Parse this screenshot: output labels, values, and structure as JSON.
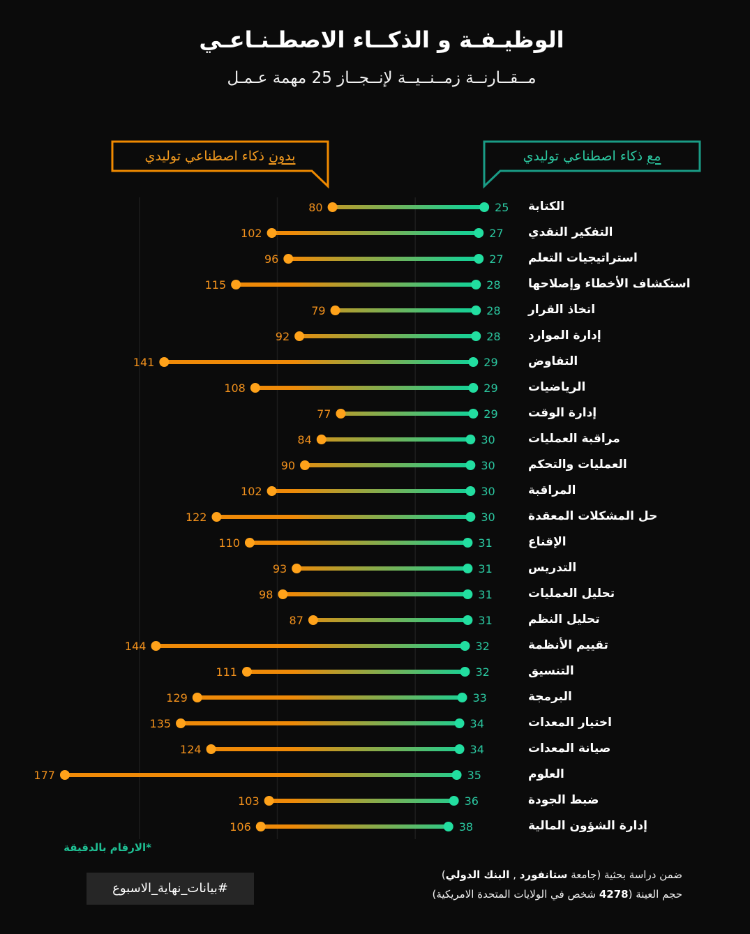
{
  "chart_data": {
    "type": "bar",
    "orientation": "horizontal",
    "variant": "dumbbell",
    "title": "الوظيـفـة و الذكــاء الاصطـنـاعـي",
    "subtitle": "مــقــارنــة زمــنــيــة لإنــجــاز 25 مهمة عـمـل",
    "categories": [
      "الكتابة",
      "التفكير النقدي",
      "استراتيجيات التعلم",
      "استكشاف الأخطاء وإصلاحها",
      "اتخاذ القرار",
      "إدارة الموارد",
      "التفاوض",
      "الرياضيات",
      "إدارة الوقت",
      "مراقبة العمليات",
      "العمليات والتحكم",
      "المراقبة",
      "حل المشكلات المعقدة",
      "الإقناع",
      "التدريس",
      "تحليل العمليات",
      "تحليل النظم",
      "تقييم الأنظمة",
      "التنسيق",
      "البرمجة",
      "اختيار المعدات",
      "صيانة المعدات",
      "العلوم",
      "ضبط الجودة",
      "إدارة الشؤون المالية"
    ],
    "series": [
      {
        "name": "مع ذكاء اصطناعي توليدي",
        "color": "#22dea0",
        "values": [
          25,
          27,
          27,
          28,
          28,
          28,
          29,
          29,
          29,
          30,
          30,
          30,
          30,
          31,
          31,
          31,
          31,
          32,
          32,
          33,
          34,
          34,
          35,
          36,
          38
        ]
      },
      {
        "name": "بدون ذكاء اصطناعي توليدي",
        "color": "#ffa21a",
        "values": [
          80,
          102,
          96,
          115,
          79,
          92,
          141,
          108,
          77,
          84,
          90,
          102,
          122,
          110,
          93,
          98,
          87,
          144,
          111,
          129,
          135,
          124,
          177,
          103,
          106
        ]
      }
    ],
    "xlim": [
      0,
      200
    ],
    "grid": true,
    "grid_values": [
      50,
      100,
      150
    ],
    "legend_position": "top"
  },
  "colors": {
    "background": "#0b0b0b",
    "with_text": "#2bc7a0",
    "without_text": "#f2911c",
    "line_start": "#ef8a08",
    "line_end": "#1ccf92",
    "grid": "#1c1c1c",
    "with_legend_border": "#1a9c86",
    "without_legend_border": "#f08a00",
    "note": "#1fbf93",
    "hashtag_bg": "#262626"
  },
  "footer": {
    "unit_note": "*الارقام بالدقيقة",
    "hashtag": "#بيانات_نهاية_الاسبوع",
    "source": {
      "lead": "ضمن دراسة بحثية (جامعة ",
      "university": "ستانفورد",
      "separator": " , ",
      "bank": "البنك الدولي",
      "close": ")"
    },
    "sample": {
      "lead": "حجم العينة (",
      "count": "4278",
      "rest": " شخص في الولايات المتحدة الامريكية)"
    }
  }
}
